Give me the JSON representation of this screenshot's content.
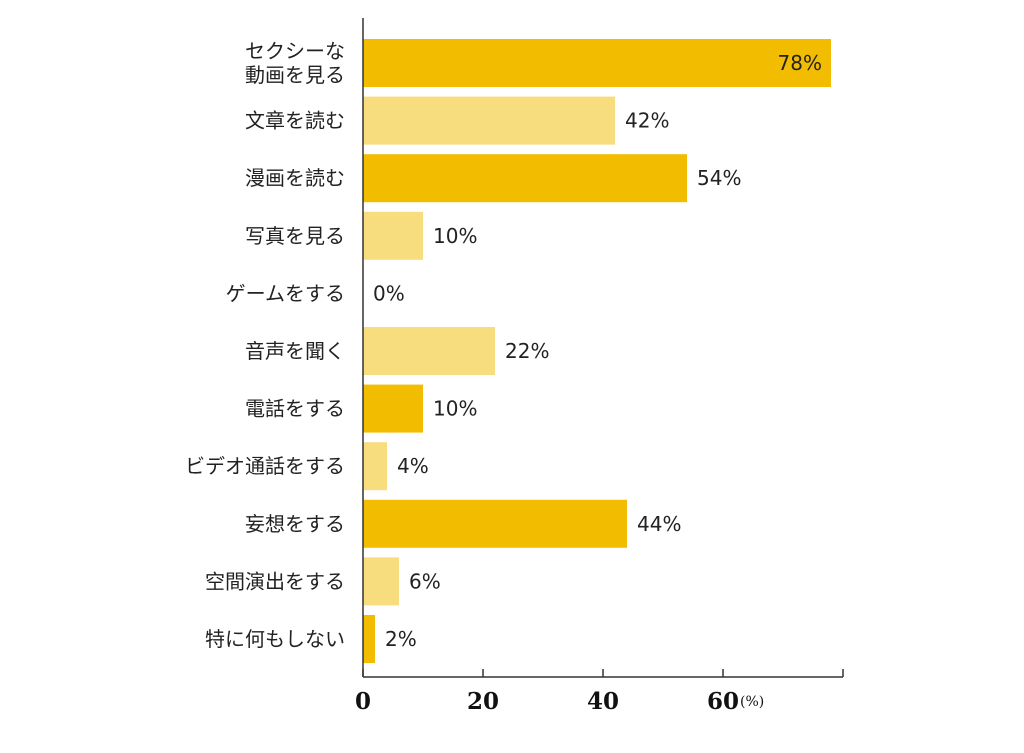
{
  "chart_data": {
    "type": "bar",
    "orientation": "horizontal",
    "categories": [
      [
        "セクシーな",
        "動画を見る"
      ],
      [
        "文章を読む"
      ],
      [
        "漫画を読む"
      ],
      [
        "写真を見る"
      ],
      [
        "ゲームをする"
      ],
      [
        "音声を聞く"
      ],
      [
        "電話をする"
      ],
      [
        "ビデオ通話をする"
      ],
      [
        "妄想をする"
      ],
      [
        "空間演出をする"
      ],
      [
        "特に何もしない"
      ]
    ],
    "values": [
      78,
      42,
      54,
      10,
      0,
      22,
      10,
      4,
      44,
      6,
      2
    ],
    "value_labels": [
      "78%",
      "42%",
      "54%",
      "10%",
      "0%",
      "22%",
      "10%",
      "4%",
      "44%",
      "6%",
      "2%"
    ],
    "x_ticks": [
      0,
      20,
      40,
      60
    ],
    "x_unit": "(%)",
    "xlim": [
      0,
      80
    ],
    "colors": {
      "strong": "#f2bd00",
      "light": "#f7dd7e",
      "axis": "#333333"
    },
    "bar_colors": [
      "strong",
      "light",
      "strong",
      "light",
      "strong",
      "light",
      "strong",
      "light",
      "strong",
      "light",
      "strong"
    ],
    "value_label_inside": [
      true,
      false,
      false,
      false,
      false,
      false,
      false,
      false,
      false,
      false,
      false
    ]
  }
}
